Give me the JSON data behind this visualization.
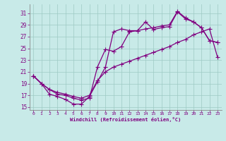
{
  "xlabel": "Windchill (Refroidissement éolien,°C)",
  "background_color": "#c8eae8",
  "line_color": "#800080",
  "markersize": 2.5,
  "linewidth": 0.9,
  "xlim": [
    -0.5,
    23.5
  ],
  "ylim": [
    14.5,
    32.5
  ],
  "yticks": [
    15,
    17,
    19,
    21,
    23,
    25,
    27,
    29,
    31
  ],
  "xticks": [
    0,
    1,
    2,
    3,
    4,
    5,
    6,
    7,
    8,
    9,
    10,
    11,
    12,
    13,
    14,
    15,
    16,
    17,
    18,
    19,
    20,
    21,
    22,
    23
  ],
  "grid_color": "#9dc9c4",
  "series1_x": [
    0,
    1,
    2,
    3,
    4,
    5,
    6,
    7,
    8,
    9,
    10,
    11,
    12,
    13,
    14,
    15,
    16,
    17,
    18,
    19,
    20,
    21,
    22,
    23
  ],
  "series1_y": [
    20.3,
    19.0,
    17.2,
    16.8,
    16.3,
    15.5,
    15.5,
    16.8,
    19.3,
    21.8,
    27.8,
    28.3,
    28.0,
    28.0,
    29.5,
    28.2,
    28.5,
    28.7,
    31.2,
    30.0,
    29.5,
    28.5,
    26.3,
    26.0
  ],
  "series2_x": [
    0,
    1,
    2,
    3,
    4,
    5,
    6,
    7,
    8,
    9,
    10,
    11,
    12,
    13,
    14,
    15,
    16,
    17,
    18,
    19,
    20,
    21,
    22,
    23
  ],
  "series2_y": [
    20.3,
    19.0,
    18.0,
    17.2,
    17.0,
    16.5,
    16.2,
    16.5,
    21.8,
    24.8,
    24.5,
    25.3,
    27.8,
    28.0,
    28.3,
    28.5,
    28.8,
    29.0,
    31.3,
    30.2,
    29.5,
    28.5,
    26.3,
    26.0
  ],
  "series3_x": [
    0,
    1,
    2,
    3,
    4,
    5,
    6,
    7,
    8,
    9,
    10,
    11,
    12,
    13,
    14,
    15,
    16,
    17,
    18,
    19,
    20,
    21,
    22,
    23
  ],
  "series3_y": [
    20.3,
    19.0,
    18.0,
    17.5,
    17.2,
    16.8,
    16.5,
    17.0,
    19.5,
    21.0,
    21.8,
    22.3,
    22.8,
    23.3,
    23.8,
    24.3,
    24.8,
    25.3,
    26.0,
    26.5,
    27.3,
    27.8,
    28.3,
    23.5
  ]
}
